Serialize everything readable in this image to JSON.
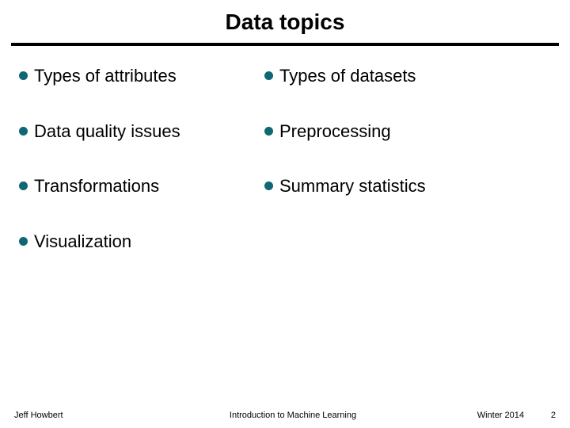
{
  "title": "Data topics",
  "bullet_color": "#0f6675",
  "text_color": "#000000",
  "rows": [
    {
      "left": "Types of attributes",
      "right": "Types of datasets"
    },
    {
      "left": "Data quality issues",
      "right": "Preprocessing"
    },
    {
      "left": "Transformations",
      "right": "Summary statistics"
    },
    {
      "left": "Visualization",
      "right": ""
    }
  ],
  "footer": {
    "author": "Jeff Howbert",
    "course": "Introduction to Machine Learning",
    "term": "Winter 2014",
    "page": "2"
  }
}
